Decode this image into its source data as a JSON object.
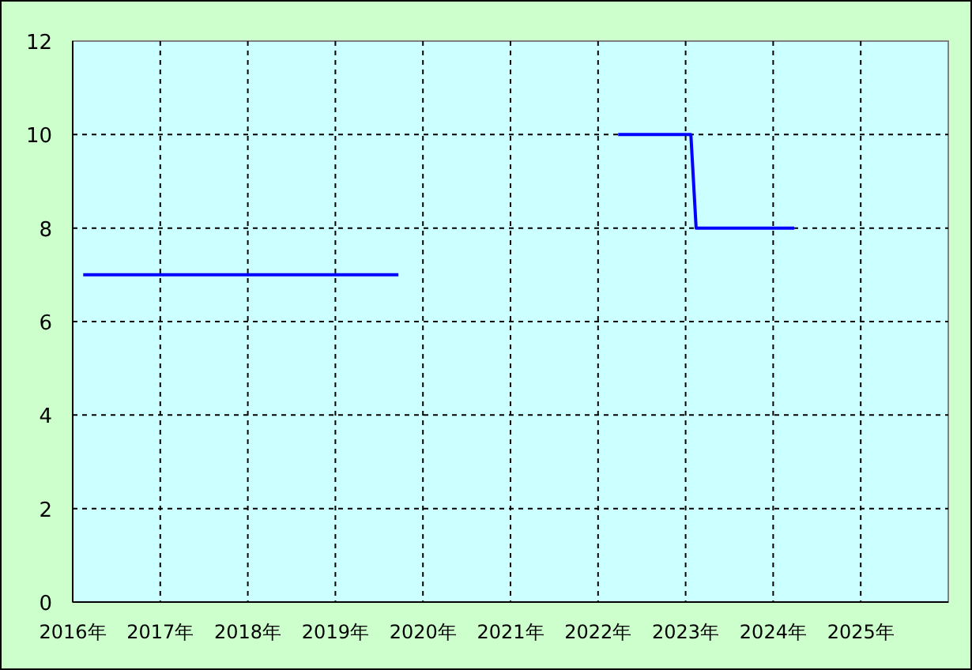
{
  "chart_data": {
    "type": "line",
    "xlim": [
      2016,
      2026
    ],
    "ylim": [
      0,
      12
    ],
    "xticks": [
      {
        "value": 2016,
        "label": "2016年"
      },
      {
        "value": 2017,
        "label": "2017年"
      },
      {
        "value": 2018,
        "label": "2018年"
      },
      {
        "value": 2019,
        "label": "2019年"
      },
      {
        "value": 2020,
        "label": "2020年"
      },
      {
        "value": 2021,
        "label": "2021年"
      },
      {
        "value": 2022,
        "label": "2022年"
      },
      {
        "value": 2023,
        "label": "2023年"
      },
      {
        "value": 2024,
        "label": "2024年"
      },
      {
        "value": 2025,
        "label": "2025年"
      }
    ],
    "yticks": [
      0,
      2,
      4,
      6,
      8,
      10,
      12
    ],
    "grid": true,
    "marker": "none",
    "line_style": "solid",
    "series": [
      {
        "color": "#0000ff",
        "x": [
          2016.12,
          2019.72
        ],
        "values": [
          7,
          7
        ]
      },
      {
        "color": "#0000ff",
        "x": [
          2022.23,
          2023.06,
          2023.12,
          2024.24
        ],
        "values": [
          10,
          10,
          8,
          8
        ]
      }
    ]
  }
}
